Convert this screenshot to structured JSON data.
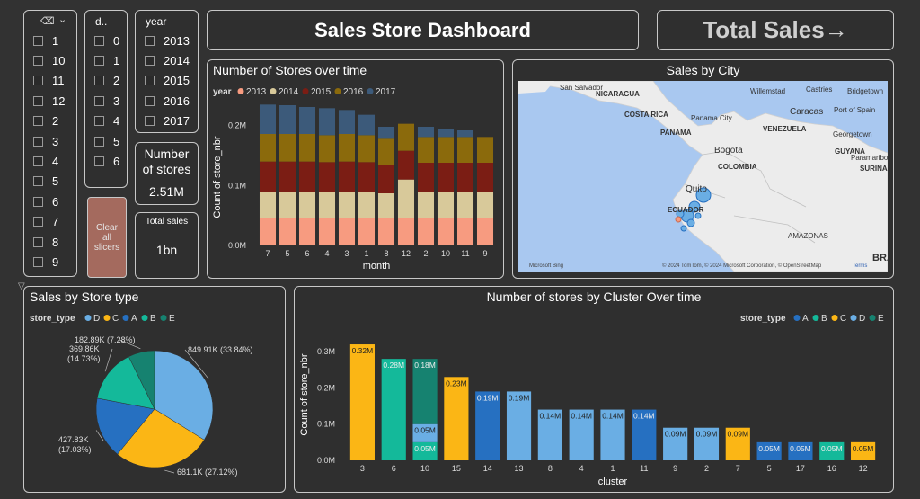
{
  "slicer_cluster": {
    "items": [
      "1",
      "10",
      "11",
      "12",
      "2",
      "3",
      "4",
      "5",
      "6",
      "7",
      "8",
      "9"
    ]
  },
  "slicer_day": {
    "header": "d..",
    "items": [
      "0",
      "1",
      "2",
      "3",
      "4",
      "5",
      "6"
    ]
  },
  "slicer_year": {
    "header": "year",
    "items": [
      "2013",
      "2014",
      "2015",
      "2016",
      "2017"
    ]
  },
  "card_num_stores": {
    "label": "Number of stores",
    "value": "2.51M"
  },
  "card_total_sales": {
    "label": "Total sales",
    "value": "1bn"
  },
  "clear_button": {
    "label": "Clear all slicers"
  },
  "header": {
    "title": "Sales Store Dashboard"
  },
  "nav_button": {
    "label": "Total Sales→"
  },
  "map": {
    "title": "Sales by City",
    "labels": [
      "San Salvador",
      "NICARAGUA",
      "COSTA RICA",
      "Panama City",
      "PANAMA",
      "Willemstad",
      "Castries",
      "Bridgetown",
      "Caracas",
      "Port of Spain",
      "VENEZUELA",
      "Georgetown",
      "GUYANA",
      "Paramaribo",
      "SURINAM",
      "Bogota",
      "COLOMBIA",
      "Quito",
      "ECUADOR",
      "AMAZONAS",
      "BRA"
    ],
    "attribution_left": "Microsoft Bing",
    "attribution_right": "© 2024 TomTom, © 2024 Microsoft Corporation, © OpenStreetMap",
    "terms": "Terms",
    "colors": {
      "water": "#a9c8f0",
      "land": "#ececec"
    }
  },
  "chart_data": [
    {
      "type": "bar",
      "title": "Number of Stores over time",
      "xlabel": "month",
      "ylabel": "Count of store_nbr",
      "legend_title": "year",
      "categories": [
        "7",
        "5",
        "6",
        "4",
        "3",
        "1",
        "8",
        "12",
        "2",
        "10",
        "11",
        "9"
      ],
      "series": [
        {
          "name": "2013",
          "color": "#f79b80",
          "values": [
            0.045,
            0.045,
            0.045,
            0.045,
            0.045,
            0.045,
            0.045,
            0.045,
            0.045,
            0.045,
            0.045,
            0.045
          ]
        },
        {
          "name": "2014",
          "color": "#d8c99a",
          "values": [
            0.045,
            0.045,
            0.045,
            0.045,
            0.045,
            0.045,
            0.042,
            0.065,
            0.045,
            0.045,
            0.045,
            0.045
          ]
        },
        {
          "name": "2015",
          "color": "#7b1d14",
          "values": [
            0.05,
            0.05,
            0.05,
            0.049,
            0.05,
            0.049,
            0.048,
            0.048,
            0.048,
            0.048,
            0.048,
            0.048
          ]
        },
        {
          "name": "2016",
          "color": "#8b6a0c",
          "values": [
            0.046,
            0.046,
            0.046,
            0.045,
            0.046,
            0.045,
            0.043,
            0.045,
            0.043,
            0.043,
            0.043,
            0.043
          ]
        },
        {
          "name": "2017",
          "color": "#3c5a7a",
          "values": [
            0.049,
            0.048,
            0.045,
            0.045,
            0.04,
            0.034,
            0.02,
            0.0,
            0.017,
            0.013,
            0.011,
            0.0
          ]
        }
      ],
      "ylim": [
        0,
        0.24
      ],
      "yticks": [
        "0.0M",
        "0.1M",
        "0.2M"
      ]
    },
    {
      "type": "pie",
      "title": "Sales by Store type",
      "legend_title": "store_type",
      "slices": [
        {
          "name": "D",
          "value": 849.91,
          "label": "849.91K (33.84%)",
          "color": "#6aaee4"
        },
        {
          "name": "C",
          "value": 681.1,
          "label": "681.1K (27.12%)",
          "color": "#fbb615"
        },
        {
          "name": "A",
          "value": 427.83,
          "label": "427.83K (17.03%)",
          "color": "#2670c1"
        },
        {
          "name": "B",
          "value": 369.86,
          "label": "369.86K (14.73%)",
          "color": "#14b99a"
        },
        {
          "name": "E",
          "value": 182.89,
          "label": "182.89K (7.28%)",
          "color": "#168270"
        }
      ]
    },
    {
      "type": "bar",
      "title": "Number of stores by Cluster Over time",
      "xlabel": "cluster",
      "ylabel": "Count of store_nbr",
      "legend_title": "store_type",
      "legend": [
        {
          "name": "A",
          "color": "#2670c1"
        },
        {
          "name": "B",
          "color": "#14b99a"
        },
        {
          "name": "C",
          "color": "#fbb615"
        },
        {
          "name": "D",
          "color": "#6aaee4"
        },
        {
          "name": "E",
          "color": "#168270"
        }
      ],
      "categories": [
        "3",
        "6",
        "10",
        "15",
        "14",
        "13",
        "8",
        "4",
        "1",
        "11",
        "9",
        "2",
        "7",
        "5",
        "17",
        "16",
        "12"
      ],
      "bars": [
        {
          "cluster": "3",
          "segments": [
            {
              "type": "C",
              "value": 0.32,
              "label": "0.32M"
            }
          ]
        },
        {
          "cluster": "6",
          "segments": [
            {
              "type": "B",
              "value": 0.28,
              "label": "0.28M"
            }
          ]
        },
        {
          "cluster": "10",
          "segments": [
            {
              "type": "B",
              "value": 0.05,
              "label": "0.05M"
            },
            {
              "type": "D",
              "value": 0.05,
              "label": "0.05M"
            },
            {
              "type": "E",
              "value": 0.18,
              "label": "0.18M"
            }
          ]
        },
        {
          "cluster": "15",
          "segments": [
            {
              "type": "C",
              "value": 0.23,
              "label": "0.23M"
            }
          ]
        },
        {
          "cluster": "14",
          "segments": [
            {
              "type": "A",
              "value": 0.19,
              "label": "0.19M"
            }
          ]
        },
        {
          "cluster": "13",
          "segments": [
            {
              "type": "D",
              "value": 0.19,
              "label": "0.19M"
            }
          ]
        },
        {
          "cluster": "8",
          "segments": [
            {
              "type": "D",
              "value": 0.14,
              "label": "0.14M"
            }
          ]
        },
        {
          "cluster": "4",
          "segments": [
            {
              "type": "D",
              "value": 0.14,
              "label": "0.14M"
            }
          ]
        },
        {
          "cluster": "1",
          "segments": [
            {
              "type": "D",
              "value": 0.14,
              "label": "0.14M"
            }
          ]
        },
        {
          "cluster": "11",
          "segments": [
            {
              "type": "A",
              "value": 0.14,
              "label": "0.14M"
            }
          ]
        },
        {
          "cluster": "9",
          "segments": [
            {
              "type": "D",
              "value": 0.09,
              "label": "0.09M"
            }
          ]
        },
        {
          "cluster": "2",
          "segments": [
            {
              "type": "D",
              "value": 0.09,
              "label": "0.09M"
            }
          ]
        },
        {
          "cluster": "7",
          "segments": [
            {
              "type": "C",
              "value": 0.09,
              "label": "0.09M"
            }
          ]
        },
        {
          "cluster": "5",
          "segments": [
            {
              "type": "A",
              "value": 0.05,
              "label": "0.05M"
            }
          ]
        },
        {
          "cluster": "17",
          "segments": [
            {
              "type": "A",
              "value": 0.05,
              "label": "0.05M"
            }
          ]
        },
        {
          "cluster": "16",
          "segments": [
            {
              "type": "B",
              "value": 0.05,
              "label": "0.05M"
            }
          ]
        },
        {
          "cluster": "12",
          "segments": [
            {
              "type": "C",
              "value": 0.05,
              "label": "0.05M"
            }
          ]
        }
      ],
      "ylim": [
        0,
        0.33
      ],
      "yticks": [
        "0.0M",
        "0.1M",
        "0.2M",
        "0.3M"
      ]
    }
  ]
}
